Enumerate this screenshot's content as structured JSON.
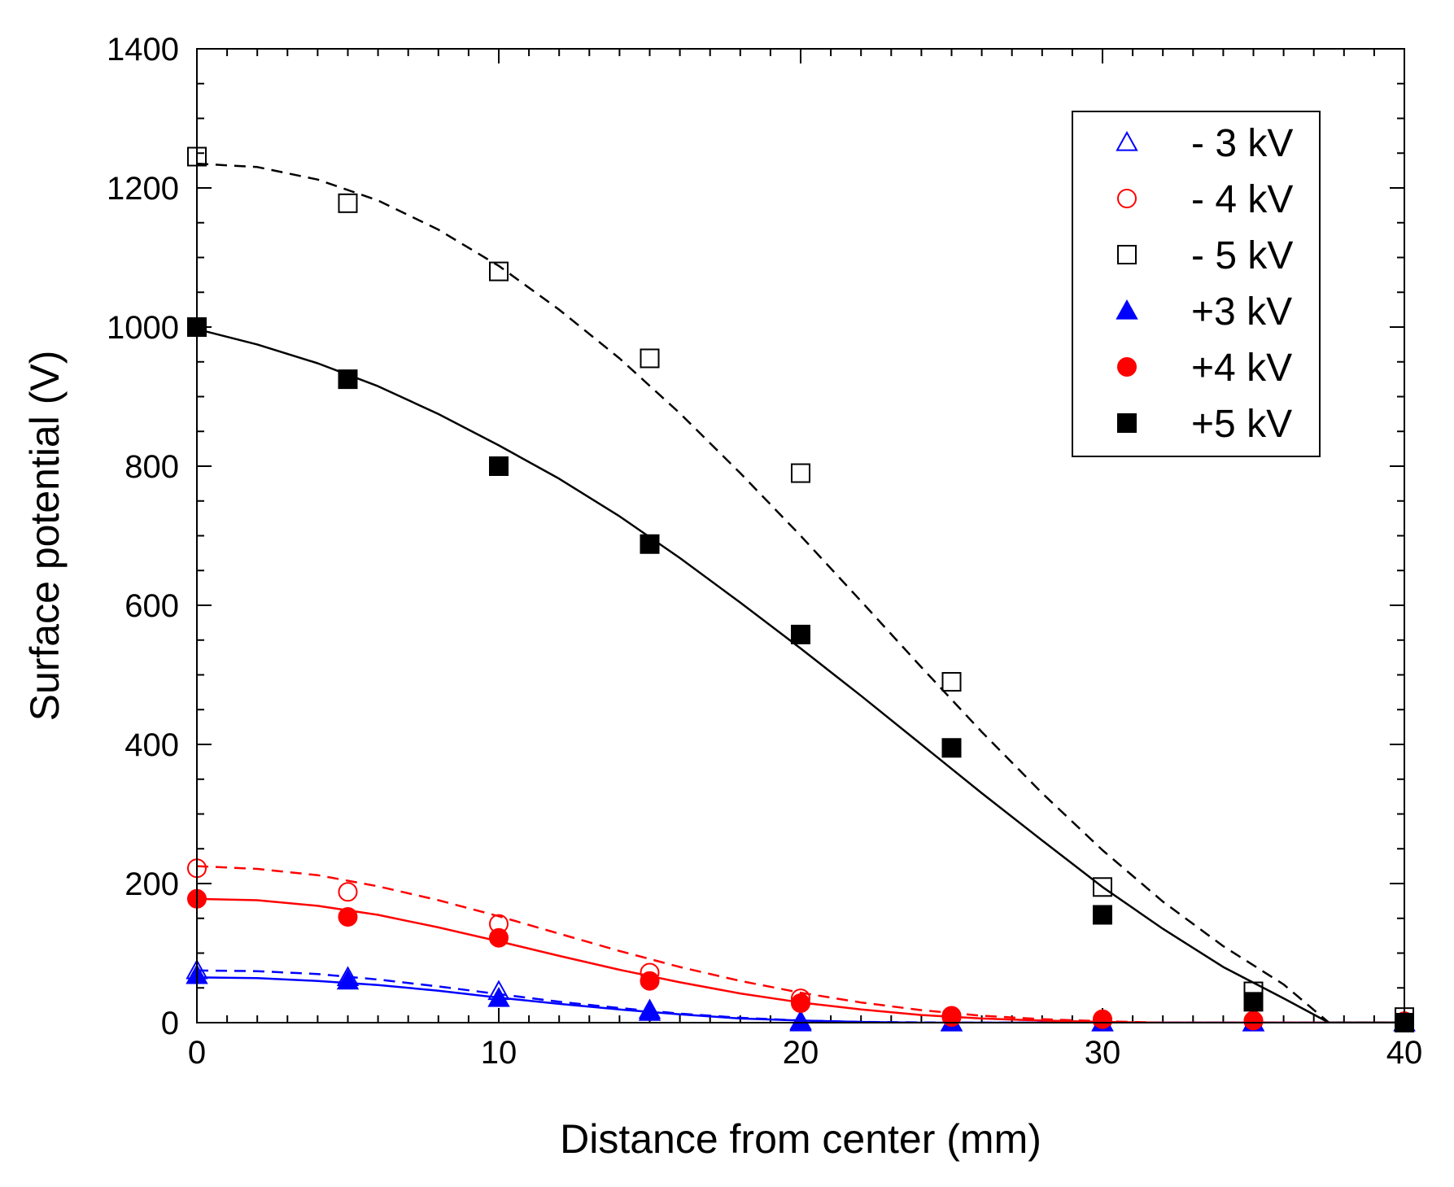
{
  "chart_data": {
    "type": "scatter",
    "title": "",
    "xlabel": "Distance from center (mm)",
    "ylabel": "Surface potential (V)",
    "xlim": [
      0,
      40
    ],
    "ylim": [
      0,
      1400
    ],
    "xticks": [
      0,
      10,
      20,
      30,
      40
    ],
    "yticks": [
      0,
      200,
      400,
      600,
      800,
      1000,
      1200,
      1400
    ],
    "x_minor_step": 1,
    "y_minor_step": 50,
    "legend_position": "top-right",
    "series": [
      {
        "name": "- 3 kV",
        "color": "#0000ff",
        "marker": "triangle-open",
        "fit_style": "dashed",
        "points": [
          [
            0,
            75
          ],
          [
            5,
            65
          ],
          [
            10,
            45
          ],
          [
            15,
            18
          ],
          [
            20,
            0
          ],
          [
            25,
            0
          ],
          [
            30,
            0
          ],
          [
            35,
            0
          ],
          [
            40,
            0
          ]
        ],
        "fit": [
          [
            0,
            75
          ],
          [
            2,
            74
          ],
          [
            4,
            70
          ],
          [
            6,
            62
          ],
          [
            8,
            52
          ],
          [
            10,
            41
          ],
          [
            12,
            30
          ],
          [
            14,
            21
          ],
          [
            16,
            13
          ],
          [
            18,
            7
          ],
          [
            20,
            3
          ],
          [
            22,
            1
          ],
          [
            25,
            0
          ],
          [
            30,
            0
          ],
          [
            40,
            0
          ]
        ]
      },
      {
        "name": "- 4 kV",
        "color": "#ff0000",
        "marker": "circle-open",
        "fit_style": "dashed",
        "points": [
          [
            0,
            222
          ],
          [
            5,
            188
          ],
          [
            10,
            142
          ],
          [
            15,
            72
          ],
          [
            20,
            35
          ],
          [
            25,
            10
          ],
          [
            30,
            3
          ],
          [
            35,
            2
          ],
          [
            40,
            2
          ]
        ],
        "fit": [
          [
            0,
            225
          ],
          [
            2,
            221
          ],
          [
            4,
            212
          ],
          [
            6,
            196
          ],
          [
            8,
            176
          ],
          [
            10,
            153
          ],
          [
            12,
            128
          ],
          [
            14,
            103
          ],
          [
            16,
            80
          ],
          [
            18,
            60
          ],
          [
            20,
            43
          ],
          [
            22,
            29
          ],
          [
            24,
            18
          ],
          [
            26,
            10
          ],
          [
            28,
            5
          ],
          [
            30,
            2
          ],
          [
            32,
            0
          ],
          [
            40,
            0
          ]
        ]
      },
      {
        "name": "- 5 kV",
        "color": "#000000",
        "marker": "square-open",
        "fit_style": "dashed",
        "points": [
          [
            0,
            1245
          ],
          [
            5,
            1178
          ],
          [
            10,
            1080
          ],
          [
            15,
            955
          ],
          [
            20,
            790
          ],
          [
            25,
            490
          ],
          [
            30,
            195
          ],
          [
            35,
            45
          ],
          [
            40,
            8
          ]
        ],
        "fit": [
          [
            0,
            1235
          ],
          [
            2,
            1230
          ],
          [
            4,
            1212
          ],
          [
            6,
            1182
          ],
          [
            8,
            1140
          ],
          [
            10,
            1088
          ],
          [
            12,
            1025
          ],
          [
            14,
            955
          ],
          [
            16,
            876
          ],
          [
            18,
            790
          ],
          [
            20,
            700
          ],
          [
            22,
            606
          ],
          [
            24,
            511
          ],
          [
            26,
            418
          ],
          [
            28,
            330
          ],
          [
            30,
            248
          ],
          [
            32,
            174
          ],
          [
            34,
            110
          ],
          [
            36,
            55
          ],
          [
            37.5,
            0
          ],
          [
            40,
            0
          ]
        ]
      },
      {
        "name": "+3 kV",
        "color": "#0000ff",
        "marker": "triangle-filled",
        "fit_style": "solid",
        "points": [
          [
            0,
            68
          ],
          [
            5,
            60
          ],
          [
            10,
            35
          ],
          [
            15,
            15
          ],
          [
            20,
            2
          ],
          [
            25,
            0
          ],
          [
            30,
            0
          ],
          [
            35,
            0
          ],
          [
            40,
            0
          ]
        ],
        "fit": [
          [
            0,
            65
          ],
          [
            2,
            64
          ],
          [
            4,
            60
          ],
          [
            6,
            54
          ],
          [
            8,
            46
          ],
          [
            10,
            36
          ],
          [
            12,
            27
          ],
          [
            14,
            19
          ],
          [
            16,
            12
          ],
          [
            18,
            6
          ],
          [
            20,
            3
          ],
          [
            22,
            1
          ],
          [
            24,
            0
          ],
          [
            40,
            0
          ]
        ]
      },
      {
        "name": "+4 kV",
        "color": "#ff0000",
        "marker": "circle-filled",
        "fit_style": "solid",
        "points": [
          [
            0,
            178
          ],
          [
            5,
            152
          ],
          [
            10,
            122
          ],
          [
            15,
            60
          ],
          [
            20,
            28
          ],
          [
            25,
            8
          ],
          [
            30,
            5
          ],
          [
            35,
            3
          ],
          [
            40,
            2
          ]
        ],
        "fit": [
          [
            0,
            178
          ],
          [
            2,
            176
          ],
          [
            4,
            168
          ],
          [
            6,
            155
          ],
          [
            8,
            137
          ],
          [
            10,
            117
          ],
          [
            12,
            96
          ],
          [
            14,
            76
          ],
          [
            16,
            58
          ],
          [
            18,
            42
          ],
          [
            20,
            29
          ],
          [
            22,
            19
          ],
          [
            24,
            11
          ],
          [
            26,
            6
          ],
          [
            28,
            3
          ],
          [
            30,
            1
          ],
          [
            32,
            0
          ],
          [
            40,
            0
          ]
        ]
      },
      {
        "name": "+5 kV",
        "color": "#000000",
        "marker": "square-filled",
        "fit_style": "solid",
        "points": [
          [
            0,
            1000
          ],
          [
            5,
            925
          ],
          [
            10,
            800
          ],
          [
            15,
            688
          ],
          [
            20,
            558
          ],
          [
            25,
            395
          ],
          [
            30,
            155
          ],
          [
            35,
            30
          ],
          [
            40,
            0
          ]
        ],
        "fit": [
          [
            0,
            997
          ],
          [
            2,
            975
          ],
          [
            4,
            948
          ],
          [
            6,
            915
          ],
          [
            8,
            875
          ],
          [
            10,
            830
          ],
          [
            12,
            782
          ],
          [
            14,
            728
          ],
          [
            16,
            668
          ],
          [
            18,
            604
          ],
          [
            20,
            538
          ],
          [
            22,
            470
          ],
          [
            24,
            400
          ],
          [
            26,
            330
          ],
          [
            28,
            262
          ],
          [
            30,
            195
          ],
          [
            32,
            135
          ],
          [
            34,
            80
          ],
          [
            36,
            35
          ],
          [
            37.5,
            0
          ],
          [
            40,
            0
          ]
        ]
      }
    ]
  }
}
